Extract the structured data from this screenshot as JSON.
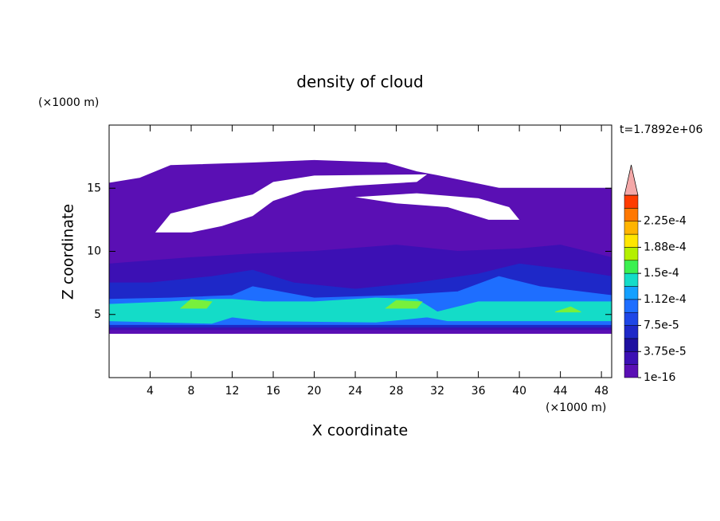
{
  "chart_data": {
    "type": "contour",
    "title": "density of cloud",
    "x_label": "X coordinate",
    "y_label": "Z coordinate",
    "x_unit": "(×1000 m)",
    "y_unit": "(×1000 m)",
    "time_label": "t=1.7892e+06",
    "xlim": [
      0,
      49
    ],
    "ylim": [
      0,
      20
    ],
    "xticks": [
      4,
      8,
      12,
      16,
      20,
      24,
      28,
      32,
      36,
      40,
      44,
      48
    ],
    "yticks": [
      5,
      10,
      15
    ],
    "contours": [
      {
        "level": 1e-16,
        "color": "#5a0fb4",
        "points": [
          [
            0,
            3.5
          ],
          [
            49,
            3.5
          ],
          [
            49,
            15
          ],
          [
            38,
            15
          ],
          [
            32,
            16
          ],
          [
            30,
            16.3
          ],
          [
            27,
            17
          ],
          [
            20,
            17.2
          ],
          [
            14,
            17
          ],
          [
            6,
            16.8
          ],
          [
            3,
            15.8
          ],
          [
            0,
            15.4
          ]
        ]
      },
      {
        "level": 1.88e-05,
        "color": "#3c10b4",
        "points": [
          [
            0,
            3.8
          ],
          [
            49,
            3.8
          ],
          [
            49,
            9.5
          ],
          [
            44,
            10.5
          ],
          [
            40,
            10.2
          ],
          [
            34,
            10
          ],
          [
            28,
            10.5
          ],
          [
            20,
            10
          ],
          [
            14,
            9.8
          ],
          [
            8,
            9.5
          ],
          [
            0,
            9
          ]
        ]
      },
      {
        "level": 3.75e-05,
        "color": "#1e28c8",
        "points": [
          [
            0,
            4
          ],
          [
            49,
            4
          ],
          [
            49,
            8
          ],
          [
            45,
            8.5
          ],
          [
            40,
            9
          ],
          [
            36,
            8.2
          ],
          [
            30,
            7.5
          ],
          [
            24,
            7
          ],
          [
            18,
            7.5
          ],
          [
            14,
            8.5
          ],
          [
            10,
            8
          ],
          [
            4,
            7.5
          ],
          [
            0,
            7.5
          ]
        ]
      },
      {
        "level": 7.5e-05,
        "color": "#1e6eff",
        "points": [
          [
            0,
            4.2
          ],
          [
            49,
            4.2
          ],
          [
            49,
            6.5
          ],
          [
            42,
            7.2
          ],
          [
            38,
            8
          ],
          [
            34,
            6.8
          ],
          [
            28,
            6.5
          ],
          [
            20,
            6.3
          ],
          [
            14,
            7.2
          ],
          [
            12,
            6.5
          ],
          [
            6,
            6.3
          ],
          [
            0,
            6.2
          ]
        ]
      },
      {
        "level": 0.000112,
        "color": "#14dcc8",
        "points": [
          [
            0,
            4.5
          ],
          [
            10,
            4.3
          ],
          [
            12,
            4.8
          ],
          [
            15,
            4.5
          ],
          [
            26,
            4.4
          ],
          [
            31,
            4.8
          ],
          [
            33,
            4.5
          ],
          [
            49,
            4.5
          ],
          [
            49,
            6
          ],
          [
            44,
            6
          ],
          [
            36,
            6
          ],
          [
            32,
            5.2
          ],
          [
            30,
            6.2
          ],
          [
            26,
            6.3
          ],
          [
            20,
            6
          ],
          [
            15,
            6
          ],
          [
            12,
            6.2
          ],
          [
            10,
            6.2
          ],
          [
            6,
            6
          ],
          [
            0,
            5.8
          ]
        ]
      },
      {
        "level": 0.00015,
        "color": "#78f03c",
        "points": [
          [
            7,
            5.5
          ],
          [
            9.5,
            5.5
          ],
          [
            10,
            6
          ],
          [
            8,
            6.2
          ]
        ]
      },
      {
        "level": 0.00015,
        "color": "#78f03c",
        "points": [
          [
            27,
            5.5
          ],
          [
            30,
            5.5
          ],
          [
            30.5,
            6
          ],
          [
            28,
            6.1
          ]
        ]
      },
      {
        "level": 0.00015,
        "color": "#78f03c",
        "points": [
          [
            43.5,
            5.2
          ],
          [
            46,
            5.2
          ],
          [
            45,
            5.6
          ]
        ]
      }
    ],
    "clear_regions": [
      [
        [
          4.5,
          11.5
        ],
        [
          6,
          13
        ],
        [
          10,
          13.8
        ],
        [
          14,
          14.5
        ],
        [
          16,
          15.5
        ],
        [
          20,
          16
        ],
        [
          31,
          16.1
        ],
        [
          30,
          15.5
        ],
        [
          24,
          15.2
        ],
        [
          19,
          14.8
        ],
        [
          16,
          14
        ],
        [
          14,
          12.8
        ],
        [
          11,
          12
        ],
        [
          8,
          11.5
        ]
      ],
      [
        [
          24,
          14.3
        ],
        [
          30,
          14.6
        ],
        [
          36,
          14.2
        ],
        [
          39,
          13.5
        ],
        [
          40,
          12.5
        ],
        [
          37,
          12.5
        ],
        [
          33,
          13.5
        ],
        [
          28,
          13.8
        ]
      ]
    ],
    "colorbar": {
      "colors": [
        "#5a0fb4",
        "#3c10b4",
        "#1e10a0",
        "#1e28c8",
        "#1e46e6",
        "#1e6eff",
        "#14a0ff",
        "#14dcc8",
        "#3cf050",
        "#b4f000",
        "#ffe600",
        "#ffb400",
        "#ff7800",
        "#ff3c00"
      ],
      "extend_color": "#f4a8a8",
      "ticks": [
        {
          "value": 1e-16,
          "label": "1e-16"
        },
        {
          "value": 3.75e-05,
          "label": "3.75e-5"
        },
        {
          "value": 7.5e-05,
          "label": "7.5e-5"
        },
        {
          "value": 0.000112,
          "label": "1.12e-4"
        },
        {
          "value": 0.00015,
          "label": "1.5e-4"
        },
        {
          "value": 0.000188,
          "label": "1.88e-4"
        },
        {
          "value": 0.000225,
          "label": "2.25e-4"
        }
      ]
    }
  }
}
